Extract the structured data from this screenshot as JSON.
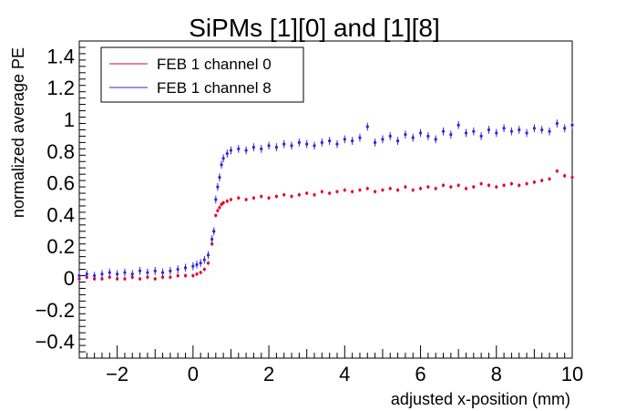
{
  "chart_data": {
    "type": "scatter",
    "title": "SiPMs [1][0] and [1][8]",
    "xlabel": "adjusted x-position (mm)",
    "ylabel": "normalized average PE",
    "xlim": [
      -3,
      10
    ],
    "ylim": [
      -0.5,
      1.5
    ],
    "xticks": [
      -2,
      0,
      2,
      4,
      6,
      8,
      10
    ],
    "xtick_labels": [
      "−2",
      "0",
      "2",
      "4",
      "6",
      "8",
      "10"
    ],
    "yticks": [
      -0.4,
      -0.2,
      0,
      0.2,
      0.4,
      0.6,
      0.8,
      1,
      1.2,
      1.4
    ],
    "ytick_labels": [
      "−0.4",
      "−0.2",
      "0",
      "0.2",
      "0.4",
      "0.6",
      "0.8",
      "1",
      "1.2",
      "1.4"
    ],
    "grid": false,
    "legend_position": "top-left",
    "series": [
      {
        "name": "FEB 1 channel 0",
        "color": "#e8002a",
        "error": 0.012,
        "x": [
          -3.0,
          -2.8,
          -2.6,
          -2.4,
          -2.2,
          -2.0,
          -1.8,
          -1.6,
          -1.4,
          -1.2,
          -1.0,
          -0.8,
          -0.6,
          -0.4,
          -0.2,
          0.0,
          0.1,
          0.2,
          0.3,
          0.4,
          0.5,
          0.55,
          0.6,
          0.65,
          0.7,
          0.75,
          0.8,
          0.9,
          1.0,
          1.2,
          1.4,
          1.6,
          1.8,
          2.0,
          2.2,
          2.4,
          2.6,
          2.8,
          3.0,
          3.2,
          3.4,
          3.6,
          3.8,
          4.0,
          4.2,
          4.4,
          4.6,
          4.8,
          5.0,
          5.2,
          5.4,
          5.6,
          5.8,
          6.0,
          6.2,
          6.4,
          6.6,
          6.8,
          7.0,
          7.2,
          7.4,
          7.6,
          7.8,
          8.0,
          8.2,
          8.4,
          8.6,
          8.8,
          9.0,
          9.2,
          9.4,
          9.6,
          9.8,
          10.0
        ],
        "y": [
          0.0,
          0.01,
          0.0,
          0.0,
          0.01,
          0.0,
          0.0,
          0.01,
          0.0,
          0.01,
          0.0,
          0.01,
          0.01,
          0.02,
          0.02,
          0.02,
          0.03,
          0.04,
          0.06,
          0.1,
          0.22,
          0.3,
          0.4,
          0.43,
          0.45,
          0.47,
          0.48,
          0.49,
          0.5,
          0.51,
          0.5,
          0.51,
          0.52,
          0.51,
          0.52,
          0.53,
          0.52,
          0.53,
          0.54,
          0.53,
          0.55,
          0.54,
          0.55,
          0.56,
          0.55,
          0.56,
          0.57,
          0.55,
          0.56,
          0.57,
          0.56,
          0.58,
          0.56,
          0.57,
          0.58,
          0.57,
          0.59,
          0.58,
          0.59,
          0.57,
          0.58,
          0.6,
          0.59,
          0.58,
          0.59,
          0.6,
          0.59,
          0.6,
          0.61,
          0.62,
          0.63,
          0.68,
          0.65,
          0.64
        ]
      },
      {
        "name": "FEB 1 channel 8",
        "color": "#3322dd",
        "error": 0.025,
        "x": [
          -3.0,
          -2.8,
          -2.6,
          -2.4,
          -2.2,
          -2.0,
          -1.8,
          -1.6,
          -1.4,
          -1.2,
          -1.0,
          -0.8,
          -0.6,
          -0.4,
          -0.2,
          0.0,
          0.1,
          0.2,
          0.3,
          0.4,
          0.5,
          0.55,
          0.6,
          0.65,
          0.7,
          0.75,
          0.8,
          0.9,
          1.0,
          1.2,
          1.4,
          1.6,
          1.8,
          2.0,
          2.2,
          2.4,
          2.6,
          2.8,
          3.0,
          3.2,
          3.4,
          3.6,
          3.8,
          4.0,
          4.2,
          4.4,
          4.6,
          4.8,
          5.0,
          5.2,
          5.4,
          5.6,
          5.8,
          6.0,
          6.2,
          6.4,
          6.6,
          6.8,
          7.0,
          7.2,
          7.4,
          7.6,
          7.8,
          8.0,
          8.2,
          8.4,
          8.6,
          8.8,
          9.0,
          9.2,
          9.4,
          9.6,
          9.8,
          10.0
        ],
        "y": [
          0.02,
          0.03,
          0.02,
          0.03,
          0.04,
          0.03,
          0.04,
          0.03,
          0.05,
          0.04,
          0.05,
          0.04,
          0.05,
          0.06,
          0.07,
          0.08,
          0.09,
          0.1,
          0.12,
          0.15,
          0.25,
          0.3,
          0.5,
          0.58,
          0.64,
          0.72,
          0.76,
          0.79,
          0.81,
          0.82,
          0.81,
          0.83,
          0.82,
          0.84,
          0.83,
          0.85,
          0.84,
          0.86,
          0.85,
          0.84,
          0.86,
          0.87,
          0.85,
          0.88,
          0.87,
          0.89,
          0.96,
          0.86,
          0.88,
          0.9,
          0.87,
          0.91,
          0.89,
          0.92,
          0.9,
          0.88,
          0.93,
          0.91,
          0.97,
          0.92,
          0.93,
          0.9,
          0.94,
          0.92,
          0.95,
          0.93,
          0.94,
          0.92,
          0.95,
          0.94,
          0.93,
          0.98,
          0.95,
          0.97
        ]
      }
    ]
  }
}
